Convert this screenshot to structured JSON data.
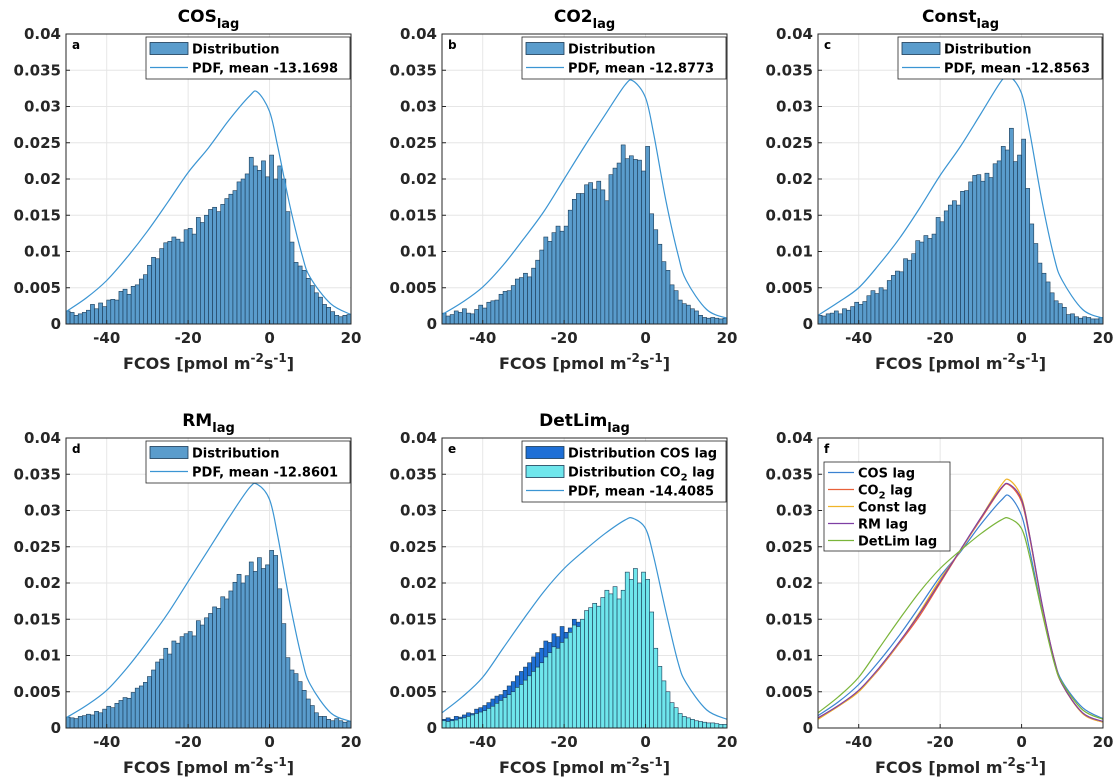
{
  "chart_data": [
    {
      "panel": "a",
      "type": "bar",
      "title": "COS",
      "title_sub": "lag",
      "xlabel": "FCOS [pmol m",
      "xlabel_sup1": "-2",
      "xlabel_mid": "s",
      "xlabel_sup2": "-1",
      "xlabel_end": "]",
      "xlim": [
        -50,
        20
      ],
      "ylim": [
        0,
        0.04
      ],
      "xticks": [
        "-40",
        "-20",
        "0",
        "20"
      ],
      "yticks": [
        "0",
        "0.005",
        "0.01",
        "0.015",
        "0.02",
        "0.025",
        "0.03",
        "0.035",
        "0.04"
      ],
      "bin_start": -50,
      "bin_width": 1,
      "bar_color": "#5a9ccc",
      "values": [
        0.0018,
        0.0016,
        0.0012,
        0.0014,
        0.0016,
        0.0019,
        0.0027,
        0.0021,
        0.0029,
        0.0024,
        0.0033,
        0.0034,
        0.0033,
        0.0045,
        0.0048,
        0.0041,
        0.0052,
        0.0054,
        0.0062,
        0.0068,
        0.0081,
        0.0092,
        0.009,
        0.0104,
        0.0112,
        0.0114,
        0.012,
        0.0117,
        0.0113,
        0.013,
        0.0132,
        0.0124,
        0.0147,
        0.014,
        0.015,
        0.0158,
        0.0161,
        0.0155,
        0.0165,
        0.0173,
        0.0179,
        0.0184,
        0.0196,
        0.02,
        0.0207,
        0.023,
        0.0218,
        0.0212,
        0.0225,
        0.0203,
        0.0233,
        0.02,
        0.0218,
        0.02,
        0.0155,
        0.0113,
        0.0085,
        0.008,
        0.0074,
        0.0063,
        0.0053,
        0.0043,
        0.0037,
        0.0027,
        0.0023,
        0.0017,
        0.0012,
        0.001,
        0.0012,
        0.0013
      ],
      "legend": [
        {
          "kind": "bar",
          "label": "Distribution",
          "color": "#5a9ccc"
        },
        {
          "kind": "line",
          "label": "PDF, mean -13.1698",
          "color": "#3b95d3"
        }
      ],
      "pdf": {
        "x": [
          -50,
          -45,
          -40,
          -35,
          -30,
          -25,
          -20,
          -15,
          -10,
          -5,
          -3,
          0,
          2,
          5,
          8,
          10,
          15,
          20
        ],
        "y": [
          0.0017,
          0.0036,
          0.006,
          0.0092,
          0.0128,
          0.0168,
          0.0209,
          0.0243,
          0.0281,
          0.0314,
          0.032,
          0.0293,
          0.0245,
          0.0163,
          0.0095,
          0.0064,
          0.0028,
          0.0013
        ]
      }
    },
    {
      "panel": "b",
      "type": "bar",
      "title": "CO2",
      "title_sub": "lag",
      "xlabel": "FCOS [pmol m",
      "xlabel_sup1": "-2",
      "xlabel_mid": "s",
      "xlabel_sup2": "-1",
      "xlabel_end": "]",
      "xlim": [
        -50,
        20
      ],
      "ylim": [
        0,
        0.04
      ],
      "xticks": [
        "-40",
        "-20",
        "0",
        "20"
      ],
      "yticks": [
        "0",
        "0.005",
        "0.01",
        "0.015",
        "0.02",
        "0.025",
        "0.03",
        "0.035",
        "0.04"
      ],
      "bin_start": -50,
      "bin_width": 1,
      "bar_color": "#5a9ccc",
      "values": [
        0.0015,
        0.0011,
        0.0013,
        0.0018,
        0.0016,
        0.0021,
        0.0015,
        0.0014,
        0.002,
        0.0026,
        0.0022,
        0.003,
        0.0032,
        0.0033,
        0.0041,
        0.0045,
        0.0046,
        0.0053,
        0.0062,
        0.0064,
        0.007,
        0.0065,
        0.0077,
        0.0088,
        0.0102,
        0.012,
        0.0114,
        0.0126,
        0.0135,
        0.0128,
        0.0135,
        0.0157,
        0.0172,
        0.018,
        0.018,
        0.0192,
        0.0195,
        0.0186,
        0.0197,
        0.0185,
        0.017,
        0.0206,
        0.0215,
        0.0222,
        0.0247,
        0.0228,
        0.0232,
        0.0227,
        0.0226,
        0.0211,
        0.0245,
        0.0152,
        0.013,
        0.011,
        0.0086,
        0.0074,
        0.0054,
        0.0046,
        0.0033,
        0.0028,
        0.0026,
        0.0021,
        0.0018,
        0.0012,
        0.0009,
        0.0008,
        0.0009,
        0.0008,
        0.0007,
        0.0008
      ],
      "legend": [
        {
          "kind": "bar",
          "label": "Distribution",
          "color": "#5a9ccc"
        },
        {
          "kind": "line",
          "label": "PDF, mean -12.8773",
          "color": "#3b95d3"
        }
      ],
      "pdf": {
        "x": [
          -50,
          -45,
          -40,
          -35,
          -30,
          -25,
          -20,
          -15,
          -10,
          -5,
          -3,
          0,
          2,
          5,
          8,
          10,
          15,
          20
        ],
        "y": [
          0.0013,
          0.003,
          0.0051,
          0.0081,
          0.0117,
          0.0155,
          0.02,
          0.0245,
          0.0288,
          0.033,
          0.0335,
          0.0312,
          0.0262,
          0.017,
          0.0095,
          0.006,
          0.002,
          0.0008
        ]
      }
    },
    {
      "panel": "c",
      "type": "bar",
      "title": "Const",
      "title_sub": "lag",
      "xlabel": "FCOS [pmol m",
      "xlabel_sup1": "-2",
      "xlabel_mid": "s",
      "xlabel_sup2": "-1",
      "xlabel_end": "]",
      "xlim": [
        -50,
        20
      ],
      "ylim": [
        0,
        0.04
      ],
      "xticks": [
        "-40",
        "-20",
        "0",
        "20"
      ],
      "yticks": [
        "0",
        "0.005",
        "0.01",
        "0.015",
        "0.02",
        "0.025",
        "0.03",
        "0.035",
        "0.04"
      ],
      "bin_start": -50,
      "bin_width": 1,
      "bar_color": "#5a9ccc",
      "values": [
        0.0012,
        0.0011,
        0.0014,
        0.0015,
        0.0018,
        0.0014,
        0.0021,
        0.0019,
        0.0024,
        0.003,
        0.0027,
        0.0031,
        0.0039,
        0.0046,
        0.0042,
        0.005,
        0.0047,
        0.006,
        0.0067,
        0.0073,
        0.0072,
        0.009,
        0.0088,
        0.0097,
        0.0115,
        0.0113,
        0.0122,
        0.0118,
        0.0124,
        0.0147,
        0.0141,
        0.0156,
        0.0164,
        0.017,
        0.0164,
        0.0183,
        0.0184,
        0.0196,
        0.0205,
        0.0206,
        0.0197,
        0.0208,
        0.0202,
        0.0221,
        0.0225,
        0.0245,
        0.024,
        0.027,
        0.0224,
        0.0233,
        0.0255,
        0.0187,
        0.0138,
        0.0111,
        0.0084,
        0.007,
        0.0058,
        0.0043,
        0.0032,
        0.0028,
        0.0023,
        0.0013,
        0.0014,
        0.001,
        0.0008,
        0.001,
        0.0009,
        0.0007,
        0.0007,
        0.0009
      ],
      "legend": [
        {
          "kind": "bar",
          "label": "Distribution",
          "color": "#5a9ccc"
        },
        {
          "kind": "line",
          "label": "PDF, mean -12.8563",
          "color": "#3b95d3"
        }
      ],
      "pdf": {
        "x": [
          -50,
          -45,
          -40,
          -35,
          -30,
          -25,
          -20,
          -15,
          -10,
          -5,
          -3,
          0,
          2,
          5,
          8,
          10,
          15,
          20
        ],
        "y": [
          0.0012,
          0.003,
          0.005,
          0.0082,
          0.0118,
          0.016,
          0.0205,
          0.0245,
          0.029,
          0.0335,
          0.0342,
          0.0318,
          0.0265,
          0.017,
          0.0092,
          0.006,
          0.002,
          0.0008
        ]
      }
    },
    {
      "panel": "d",
      "type": "bar",
      "title": "RM",
      "title_sub": "lag",
      "xlabel": "FCOS [pmol m",
      "xlabel_sup1": "-2",
      "xlabel_mid": "s",
      "xlabel_sup2": "-1",
      "xlabel_end": "]",
      "xlim": [
        -50,
        20
      ],
      "ylim": [
        0,
        0.04
      ],
      "xticks": [
        "-40",
        "-20",
        "0",
        "20"
      ],
      "yticks": [
        "0",
        "0.005",
        "0.01",
        "0.015",
        "0.02",
        "0.025",
        "0.03",
        "0.035",
        "0.04"
      ],
      "bin_start": -50,
      "bin_width": 1,
      "bar_color": "#5a9ccc",
      "values": [
        0.0015,
        0.0014,
        0.0013,
        0.0016,
        0.0017,
        0.0019,
        0.0018,
        0.0023,
        0.0021,
        0.0026,
        0.003,
        0.0028,
        0.0034,
        0.0038,
        0.0042,
        0.0041,
        0.0049,
        0.0055,
        0.0058,
        0.0063,
        0.0071,
        0.008,
        0.0091,
        0.0095,
        0.011,
        0.0102,
        0.012,
        0.0117,
        0.0126,
        0.013,
        0.0133,
        0.0127,
        0.0148,
        0.0142,
        0.0152,
        0.0158,
        0.0167,
        0.0165,
        0.0181,
        0.0178,
        0.0189,
        0.0201,
        0.0212,
        0.02,
        0.021,
        0.0229,
        0.0216,
        0.0235,
        0.022,
        0.0225,
        0.0245,
        0.0238,
        0.0192,
        0.0144,
        0.0097,
        0.008,
        0.0075,
        0.0064,
        0.0052,
        0.004,
        0.0031,
        0.0021,
        0.0016,
        0.0016,
        0.0012,
        0.001,
        0.0013,
        0.001,
        0.0008,
        0.0009
      ],
      "legend": [
        {
          "kind": "bar",
          "label": "Distribution",
          "color": "#5a9ccc"
        },
        {
          "kind": "line",
          "label": "PDF, mean -12.8601",
          "color": "#3b95d3"
        }
      ],
      "pdf": {
        "x": [
          -50,
          -45,
          -40,
          -35,
          -30,
          -25,
          -20,
          -15,
          -10,
          -5,
          -3,
          0,
          2,
          5,
          8,
          10,
          15,
          20
        ],
        "y": [
          0.0014,
          0.0031,
          0.0052,
          0.0083,
          0.0119,
          0.0158,
          0.0202,
          0.0246,
          0.029,
          0.0331,
          0.0336,
          0.0315,
          0.0265,
          0.0172,
          0.0094,
          0.006,
          0.0021,
          0.0009
        ]
      }
    },
    {
      "panel": "e",
      "type": "bar",
      "title": "DetLim",
      "title_sub": "lag",
      "xlabel": "FCOS [pmol m",
      "xlabel_sup1": "-2",
      "xlabel_mid": "s",
      "xlabel_sup2": "-1",
      "xlabel_end": "]",
      "xlim": [
        -50,
        20
      ],
      "ylim": [
        0,
        0.04
      ],
      "xticks": [
        "-40",
        "-20",
        "0",
        "20"
      ],
      "yticks": [
        "0",
        "0.005",
        "0.01",
        "0.015",
        "0.02",
        "0.025",
        "0.03",
        "0.035",
        "0.04"
      ],
      "bin_start": -50,
      "bin_width": 1,
      "series": [
        {
          "color": "#1e6fd6",
          "values": [
            0.0012,
            0.0014,
            0.0012,
            0.0016,
            0.0015,
            0.0018,
            0.0021,
            0.002,
            0.0026,
            0.0028,
            0.0031,
            0.0035,
            0.004,
            0.0044,
            0.0046,
            0.0052,
            0.0058,
            0.0064,
            0.0072,
            0.0078,
            0.0084,
            0.009,
            0.0098,
            0.0104,
            0.011,
            0.012,
            0.0118,
            0.013,
            0.0126,
            0.014,
            0.0132,
            0.0138,
            0.015,
            0.0146,
            0.0142,
            0.015,
            0.014,
            0.0136,
            0.0128,
            0.012,
            0.0118,
            0.0106,
            0.0098,
            0.009,
            0.0082,
            0.0074,
            0.0066,
            0.0058,
            0.005,
            0.0042,
            0.0036,
            0.0028,
            0.0022,
            0.0018,
            0.0014,
            0.0012,
            0.001,
            0.0008,
            0.0007,
            0.0006,
            0.0005,
            0.0005,
            0.0004,
            0.0004,
            0.0003,
            0.0003,
            0.0003,
            0.0002,
            0.0002,
            0.0002
          ]
        },
        {
          "color": "#6fe6ec",
          "values": [
            0.001,
            0.0009,
            0.001,
            0.0011,
            0.0013,
            0.0014,
            0.0016,
            0.0018,
            0.002,
            0.0022,
            0.0024,
            0.0027,
            0.003,
            0.0034,
            0.0038,
            0.0042,
            0.0046,
            0.005,
            0.0056,
            0.006,
            0.0066,
            0.0072,
            0.0078,
            0.0084,
            0.009,
            0.0098,
            0.0104,
            0.0112,
            0.011,
            0.0118,
            0.0124,
            0.0132,
            0.0142,
            0.014,
            0.015,
            0.0162,
            0.0166,
            0.0172,
            0.0168,
            0.018,
            0.019,
            0.0185,
            0.0195,
            0.0178,
            0.019,
            0.0215,
            0.0205,
            0.022,
            0.02,
            0.0215,
            0.0205,
            0.016,
            0.011,
            0.0085,
            0.0065,
            0.005,
            0.0035,
            0.0028,
            0.002,
            0.0016,
            0.0014,
            0.0012,
            0.001,
            0.0009,
            0.0008,
            0.0007,
            0.0007,
            0.0006,
            0.0005,
            0.0005
          ]
        }
      ],
      "legend": [
        {
          "kind": "bar",
          "label": "Distribution COS lag",
          "color": "#1e6fd6"
        },
        {
          "kind": "bar",
          "label": "Distribution CO",
          "sub": "2",
          "label_end": " lag",
          "color": "#6fe6ec"
        },
        {
          "kind": "line",
          "label": "PDF, mean -14.4085",
          "color": "#3b95d3"
        }
      ],
      "pdf": {
        "x": [
          -50,
          -45,
          -40,
          -35,
          -30,
          -25,
          -20,
          -15,
          -10,
          -5,
          -3,
          0,
          2,
          5,
          8,
          10,
          15,
          20
        ],
        "y": [
          0.0021,
          0.0043,
          0.007,
          0.011,
          0.015,
          0.0188,
          0.022,
          0.0245,
          0.0268,
          0.0287,
          0.0289,
          0.0275,
          0.0236,
          0.016,
          0.009,
          0.0062,
          0.0025,
          0.0012
        ]
      }
    },
    {
      "panel": "f",
      "type": "line",
      "title": "",
      "title_sub": "",
      "xlabel": "FCOS [pmol m",
      "xlabel_sup1": "-2",
      "xlabel_mid": "s",
      "xlabel_sup2": "-1",
      "xlabel_end": "]",
      "xlim": [
        -50,
        20
      ],
      "ylim": [
        0,
        0.04
      ],
      "xticks": [
        "-40",
        "-20",
        "0",
        "20"
      ],
      "yticks": [
        "0",
        "0.005",
        "0.01",
        "0.015",
        "0.02",
        "0.025",
        "0.03",
        "0.035",
        "0.04"
      ],
      "x": [
        -50,
        -45,
        -40,
        -35,
        -30,
        -25,
        -20,
        -15,
        -10,
        -5,
        -3,
        0,
        2,
        5,
        8,
        10,
        15,
        20
      ],
      "series": [
        {
          "name": "COS lag",
          "color": "#3b82d1",
          "values": [
            0.0017,
            0.0036,
            0.006,
            0.0092,
            0.0128,
            0.0168,
            0.0209,
            0.0243,
            0.0281,
            0.0314,
            0.032,
            0.0293,
            0.0245,
            0.0163,
            0.0095,
            0.0064,
            0.0028,
            0.0013
          ]
        },
        {
          "name": "CO",
          "sub": "2",
          "name_end": " lag",
          "color": "#e8613a",
          "values": [
            0.0013,
            0.003,
            0.0051,
            0.0081,
            0.0117,
            0.0155,
            0.02,
            0.0245,
            0.0288,
            0.033,
            0.0335,
            0.0312,
            0.0262,
            0.017,
            0.0095,
            0.006,
            0.002,
            0.0008
          ]
        },
        {
          "name": "Const lag",
          "color": "#f0b429",
          "values": [
            0.0012,
            0.003,
            0.005,
            0.0082,
            0.0118,
            0.016,
            0.0205,
            0.0245,
            0.029,
            0.0335,
            0.0342,
            0.0318,
            0.0265,
            0.017,
            0.0092,
            0.006,
            0.002,
            0.0008
          ]
        },
        {
          "name": "RM lag",
          "color": "#7e3fa3",
          "values": [
            0.0014,
            0.0031,
            0.0052,
            0.0083,
            0.0119,
            0.0158,
            0.0202,
            0.0246,
            0.029,
            0.0331,
            0.0336,
            0.0315,
            0.0265,
            0.0172,
            0.0094,
            0.006,
            0.0021,
            0.0009
          ]
        },
        {
          "name": "DetLim lag",
          "color": "#7ab53a",
          "values": [
            0.0021,
            0.0043,
            0.007,
            0.011,
            0.015,
            0.0188,
            0.022,
            0.0245,
            0.0268,
            0.0287,
            0.0289,
            0.0275,
            0.0236,
            0.016,
            0.009,
            0.0062,
            0.0025,
            0.0012
          ]
        }
      ]
    }
  ]
}
